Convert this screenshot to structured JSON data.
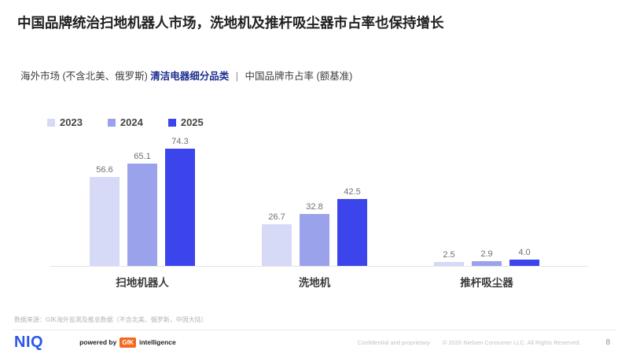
{
  "slide": {
    "title": "中国品牌统治扫地机器人市场，洗地机及推杆吸尘器市占率也保持增长",
    "subtitle": {
      "prefix": "海外市场 (不含北美、俄罗斯) ",
      "highlight": "清洁电器细分品类",
      "separator": "|",
      "suffix": "中国品牌市占率 (额基准)"
    },
    "footnote": "数据来源：GfK海外监测及推总数据（不含北美、俄罗斯，中国大陆）"
  },
  "chart_data": {
    "type": "bar",
    "categories": [
      "扫地机器人",
      "洗地机",
      "推杆吸尘器"
    ],
    "series": [
      {
        "name": "2023",
        "color": "#D7DAF7",
        "values": [
          56.6,
          26.7,
          2.5
        ]
      },
      {
        "name": "2024",
        "color": "#9BA2EC",
        "values": [
          65.1,
          32.8,
          2.9
        ]
      },
      {
        "name": "2025",
        "color": "#3B45EB",
        "values": [
          74.3,
          42.5,
          4.0
        ]
      }
    ],
    "ylim": [
      0,
      80
    ],
    "grid": false,
    "legend_position": "top-left",
    "value_labels": true,
    "value_label_decimals": 1
  },
  "footer": {
    "niq_logo": "NIQ",
    "powered_by_label": "powered by",
    "gfk_logo": "GfK",
    "gfk_suffix": "intelligence",
    "confidential": "Confidential and proprietary",
    "copyright": "© 2026 Nielsen Consumer LLC. All Rights Reserved.",
    "page_number": "8"
  }
}
